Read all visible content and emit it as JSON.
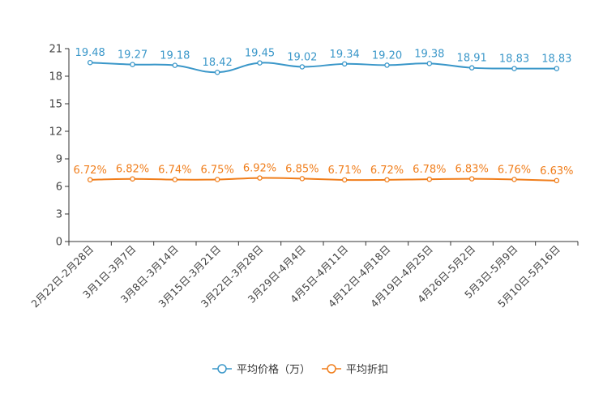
{
  "chart_data": {
    "type": "line",
    "title": "",
    "xlabel": "",
    "ylabel": "",
    "ylim": [
      0,
      21
    ],
    "yticks": [
      0,
      3,
      6,
      9,
      12,
      15,
      18,
      21
    ],
    "grid": false,
    "legend_position": "bottom-center",
    "categories": [
      "2月22日-2月28日",
      "3月1日-3月7日",
      "3月8日-3月14日",
      "3月15日-3月21日",
      "3月22日-3月28日",
      "3月29日-4月4日",
      "4月5日-4月11日",
      "4月12日-4月18日",
      "4月19日-4月25日",
      "4月26日-5月2日",
      "5月3日-5月9日",
      "5月10日-5月16日"
    ],
    "series": [
      {
        "name": "平均价格（万）",
        "color": "#3a97c9",
        "values": [
          19.48,
          19.27,
          19.18,
          18.42,
          19.45,
          19.02,
          19.34,
          19.2,
          19.38,
          18.91,
          18.83,
          18.83
        ],
        "labels": [
          "19.48",
          "19.27",
          "19.18",
          "18.42",
          "19.45",
          "19.02",
          "19.34",
          "19.20",
          "19.38",
          "18.91",
          "18.83",
          "18.83"
        ]
      },
      {
        "name": "平均折扣",
        "color": "#f07d1a",
        "values": [
          6.72,
          6.82,
          6.74,
          6.75,
          6.92,
          6.85,
          6.71,
          6.72,
          6.78,
          6.83,
          6.76,
          6.63
        ],
        "labels": [
          "6.72%",
          "6.82%",
          "6.74%",
          "6.75%",
          "6.92%",
          "6.85%",
          "6.71%",
          "6.72%",
          "6.78%",
          "6.83%",
          "6.76%",
          "6.63%"
        ]
      }
    ]
  }
}
